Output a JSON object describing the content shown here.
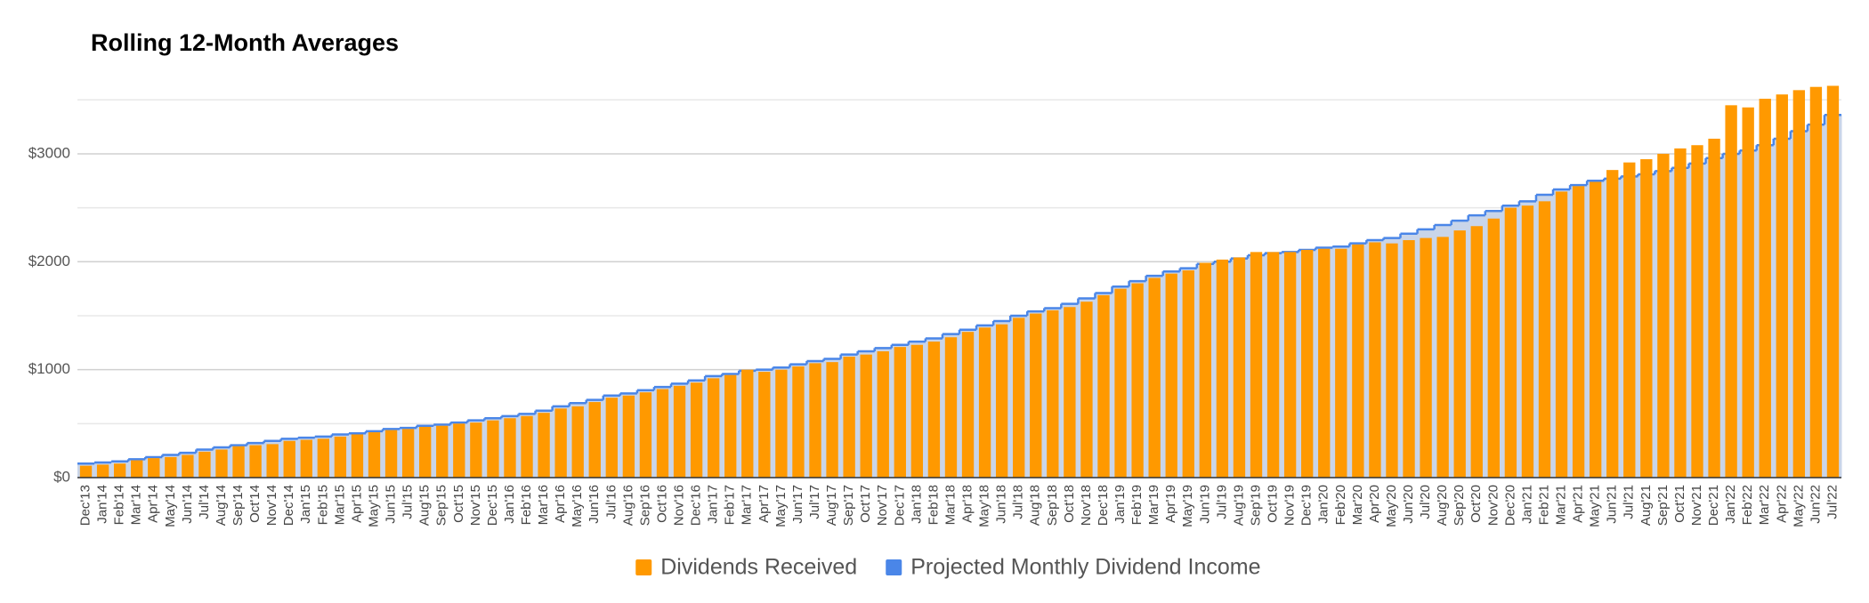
{
  "chart_data": {
    "type": "bar",
    "title": "Rolling 12-Month Averages",
    "categories": [
      "Dec'13",
      "Jan'14",
      "Feb'14",
      "Mar'14",
      "Apr'14",
      "May'14",
      "Jun'14",
      "Jul'14",
      "Aug'14",
      "Sep'14",
      "Oct'14",
      "Nov'14",
      "Dec'14",
      "Jan'15",
      "Feb'15",
      "Mar'15",
      "Apr'15",
      "May'15",
      "Jun'15",
      "Jul'15",
      "Aug'15",
      "Sep'15",
      "Oct'15",
      "Nov'15",
      "Dec'15",
      "Jan'16",
      "Feb'16",
      "Mar'16",
      "Apr'16",
      "May'16",
      "Jun'16",
      "Jul'16",
      "Aug'16",
      "Sep'16",
      "Oct'16",
      "Nov'16",
      "Dec'16",
      "Jan'17",
      "Feb'17",
      "Mar'17",
      "Apr'17",
      "May'17",
      "Jun'17",
      "Jul'17",
      "Aug'17",
      "Sep'17",
      "Oct'17",
      "Nov'17",
      "Dec'17",
      "Jan'18",
      "Feb'18",
      "Mar'18",
      "Apr'18",
      "May'18",
      "Jun'18",
      "Jul'18",
      "Aug'18",
      "Sep'18",
      "Oct'18",
      "Nov'18",
      "Dec'18",
      "Jan'19",
      "Feb'19",
      "Mar'19",
      "Apr'19",
      "May'19",
      "Jun'19",
      "Jul'19",
      "Aug'19",
      "Sep'19",
      "Oct'19",
      "Nov'19",
      "Dec'19",
      "Jan'20",
      "Feb'20",
      "Mar'20",
      "Apr'20",
      "May'20",
      "Jun'20",
      "Jul'20",
      "Aug'20",
      "Sep'20",
      "Oct'20",
      "Nov'20",
      "Dec'20",
      "Jan'21",
      "Feb'21",
      "Mar'21",
      "Apr'21",
      "May'21",
      "Jun'21",
      "Jul'21",
      "Aug'21",
      "Sep'21",
      "Oct'21",
      "Nov'21",
      "Dec'21",
      "Jan'22",
      "Feb'22",
      "Mar'22",
      "Apr'22",
      "May'22",
      "Jun'22",
      "Jul'22"
    ],
    "series": [
      {
        "name": "Projected Monthly Dividend Income",
        "type": "area",
        "step": true,
        "color": "#4a86e8",
        "fill": "#c9d5e9",
        "values": [
          130,
          140,
          150,
          170,
          190,
          210,
          230,
          260,
          280,
          300,
          320,
          340,
          360,
          370,
          380,
          400,
          410,
          430,
          450,
          460,
          480,
          490,
          510,
          530,
          550,
          570,
          590,
          620,
          660,
          690,
          720,
          760,
          780,
          810,
          840,
          870,
          900,
          940,
          960,
          990,
          1000,
          1020,
          1050,
          1080,
          1100,
          1140,
          1170,
          1200,
          1230,
          1260,
          1290,
          1330,
          1370,
          1410,
          1450,
          1500,
          1540,
          1570,
          1610,
          1660,
          1710,
          1770,
          1820,
          1870,
          1910,
          1940,
          1980,
          2000,
          2030,
          2060,
          2080,
          2090,
          2110,
          2130,
          2140,
          2170,
          2200,
          2220,
          2260,
          2300,
          2340,
          2380,
          2430,
          2470,
          2520,
          2560,
          2620,
          2670,
          2710,
          2750,
          2770,
          2790,
          2810,
          2840,
          2870,
          2910,
          2960,
          3000,
          3030,
          3080,
          3140,
          3210,
          3270,
          3360
        ]
      },
      {
        "name": "Dividends Received",
        "type": "bar",
        "color": "#ff9900",
        "values": [
          110,
          120,
          130,
          160,
          180,
          190,
          210,
          240,
          260,
          290,
          300,
          310,
          340,
          350,
          360,
          380,
          400,
          420,
          440,
          450,
          470,
          480,
          500,
          510,
          530,
          550,
          570,
          600,
          640,
          660,
          700,
          740,
          760,
          790,
          820,
          850,
          880,
          920,
          950,
          1000,
          980,
          1000,
          1030,
          1060,
          1070,
          1120,
          1140,
          1170,
          1210,
          1230,
          1260,
          1300,
          1350,
          1390,
          1420,
          1480,
          1520,
          1550,
          1580,
          1630,
          1690,
          1750,
          1800,
          1850,
          1890,
          1920,
          1990,
          2020,
          2040,
          2090,
          2090,
          2090,
          2110,
          2120,
          2120,
          2160,
          2180,
          2170,
          2200,
          2220,
          2230,
          2290,
          2330,
          2400,
          2500,
          2520,
          2560,
          2650,
          2700,
          2740,
          2850,
          2920,
          2950,
          3000,
          3050,
          3080,
          3140,
          3450,
          3430,
          3510,
          3550,
          3590,
          3620,
          3630
        ]
      }
    ],
    "legend_order": [
      1,
      0
    ],
    "ylim": [
      0,
      3700
    ],
    "yticks": [
      {
        "value": 0,
        "label": "$0"
      },
      {
        "value": 1000,
        "label": "$1000"
      },
      {
        "value": 2000,
        "label": "$2000"
      },
      {
        "value": 3000,
        "label": "$3000"
      }
    ],
    "minor_gridlines": [
      500,
      1500,
      2500,
      3500
    ],
    "grid": true,
    "legend": "bottom"
  }
}
